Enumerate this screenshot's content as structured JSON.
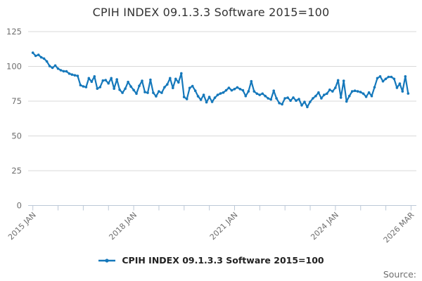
{
  "title": "CPIH INDEX 09.1.3.3 Software 2015=100",
  "source_label": "Source:",
  "legend": {
    "label": "CPIH INDEX 09.1.3.3 Software 2015=100"
  },
  "colors": {
    "line": "#1578bb",
    "grid": "#d9d9d9",
    "axis": "#bcc8d7",
    "tick_label": "#6e6e6e",
    "title_text": "#333333",
    "legend_text": "#222222"
  },
  "chart_data": {
    "type": "line",
    "title": "CPIH INDEX 09.1.3.3 Software 2015=100",
    "xlabel": "",
    "ylabel": "",
    "ylim": [
      0,
      125
    ],
    "y_ticks": [
      0,
      25,
      50,
      75,
      100,
      125
    ],
    "grid": "horizontal",
    "legend_position": "bottom",
    "x_start": "2015 JAN",
    "x_end": "2026 MAR",
    "frequency": "monthly",
    "x_tick_count": 16,
    "labeled_tick_indices": [
      0,
      4,
      8,
      12,
      15
    ],
    "x_tick_labels": [
      "2015 JAN",
      "2018 JAN",
      "2021 JAN",
      "2024 JAN",
      "2026 MAR"
    ],
    "series": [
      {
        "name": "CPIH INDEX 09.1.3.3 Software 2015=100",
        "values": [
          109.8,
          107.6,
          108.3,
          106.5,
          105.6,
          103.6,
          100.2,
          99.0,
          100.6,
          98.4,
          97.2,
          96.5,
          96.4,
          94.8,
          94.1,
          93.6,
          93.2,
          86.5,
          85.6,
          85.1,
          91.5,
          89.0,
          92.8,
          84.0,
          85.1,
          89.8,
          90.1,
          87.8,
          91.5,
          84.0,
          90.6,
          83.2,
          81.0,
          84.0,
          88.8,
          85.5,
          83.0,
          80.4,
          86.0,
          89.6,
          81.5,
          81.0,
          90.4,
          81.0,
          78.5,
          82.0,
          81.0,
          85.0,
          87.0,
          91.5,
          84.5,
          91.0,
          88.5,
          95.0,
          78.0,
          76.5,
          84.5,
          85.8,
          82.5,
          78.5,
          76.0,
          79.5,
          74.2,
          78.0,
          74.5,
          77.5,
          79.5,
          80.5,
          81.2,
          82.8,
          84.6,
          82.8,
          83.7,
          84.9,
          83.7,
          82.8,
          78.7,
          82.0,
          89.3,
          82.0,
          80.4,
          79.5,
          80.4,
          78.7,
          77.0,
          76.2,
          82.5,
          77.0,
          73.6,
          72.8,
          77.0,
          77.5,
          75.4,
          77.6,
          75.4,
          76.5,
          72.0,
          74.5,
          70.8,
          74.5,
          77.0,
          78.7,
          81.2,
          77.0,
          79.5,
          80.4,
          83.2,
          82.0,
          84.6,
          90.0,
          77.6,
          89.6,
          74.8,
          78.7,
          82.0,
          82.5,
          82.0,
          81.5,
          80.4,
          78.2,
          81.2,
          78.7,
          85.0,
          91.5,
          92.8,
          89.3,
          91.0,
          92.4,
          92.4,
          91.0,
          84.6,
          87.6,
          82.0,
          92.8,
          80.5
        ]
      }
    ]
  }
}
